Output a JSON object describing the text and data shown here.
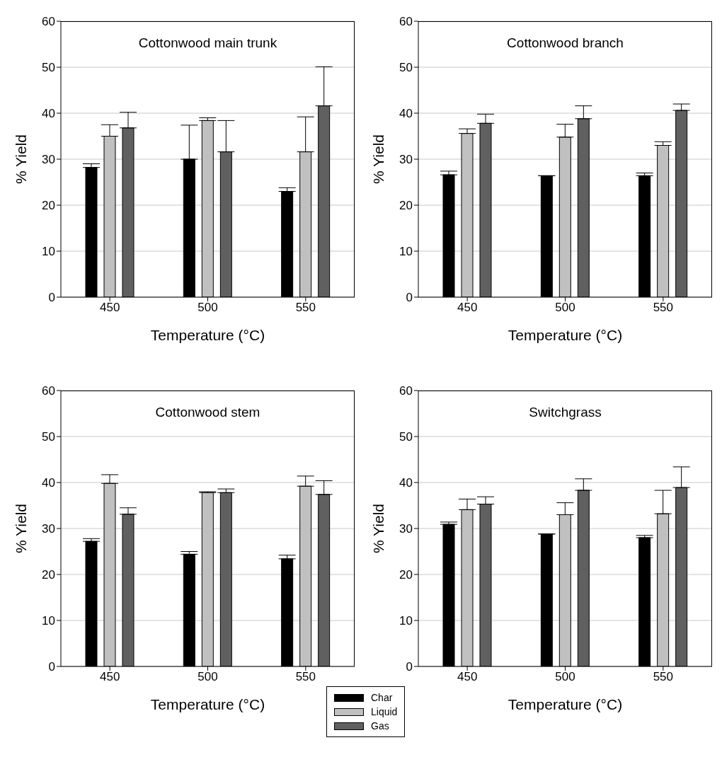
{
  "chart_data": [
    {
      "type": "bar",
      "title": "Cottonwood main trunk",
      "xlabel": "Temperature (°C)",
      "ylabel": "% Yield",
      "categories": [
        "450",
        "500",
        "550"
      ],
      "ylim": [
        0,
        60
      ],
      "yticks": [
        0,
        10,
        20,
        30,
        40,
        50,
        60
      ],
      "grid": "y",
      "series": [
        {
          "color": "#000000",
          "values": [
            28.2,
            30.0,
            23.0
          ],
          "errors": [
            [
              28.2,
              29.0
            ],
            [
              30.0,
              37.4
            ],
            [
              23.0,
              23.8
            ]
          ]
        },
        {
          "color": "#c0c0c0",
          "values": [
            35.0,
            38.4,
            31.6
          ],
          "errors": [
            [
              35.0,
              37.5
            ],
            [
              38.4,
              39.0
            ],
            [
              31.6,
              39.2
            ]
          ]
        },
        {
          "color": "#606060",
          "values": [
            36.8,
            31.6,
            41.6
          ],
          "errors": [
            [
              36.8,
              40.2
            ],
            [
              31.6,
              38.4
            ],
            [
              41.6,
              50.1
            ]
          ]
        }
      ]
    },
    {
      "type": "bar",
      "title": "Cottonwood branch",
      "xlabel": "Temperature (°C)",
      "ylabel": "% Yield",
      "categories": [
        "450",
        "500",
        "550"
      ],
      "ylim": [
        0,
        60
      ],
      "yticks": [
        0,
        10,
        20,
        30,
        40,
        50,
        60
      ],
      "grid": "y",
      "series": [
        {
          "color": "#000000",
          "values": [
            26.6,
            26.4,
            26.4
          ],
          "errors": [
            [
              26.6,
              27.4
            ],
            null,
            [
              26.4,
              27.0
            ]
          ]
        },
        {
          "color": "#c0c0c0",
          "values": [
            35.6,
            34.8,
            33.0
          ],
          "errors": [
            [
              35.6,
              36.6
            ],
            [
              34.8,
              37.6
            ],
            [
              33.0,
              33.8
            ]
          ]
        },
        {
          "color": "#606060",
          "values": [
            37.8,
            38.8,
            40.6
          ],
          "errors": [
            [
              37.8,
              39.8
            ],
            [
              38.8,
              41.6
            ],
            [
              40.6,
              42.0
            ]
          ]
        }
      ]
    },
    {
      "type": "bar",
      "title": "Cottonwood stem",
      "xlabel": "Temperature (°C)",
      "ylabel": "% Yield",
      "categories": [
        "450",
        "500",
        "550"
      ],
      "ylim": [
        0,
        60
      ],
      "yticks": [
        0,
        10,
        20,
        30,
        40,
        50,
        60
      ],
      "grid": "y",
      "series": [
        {
          "color": "#000000",
          "values": [
            27.2,
            24.4,
            23.4
          ],
          "errors": [
            [
              27.2,
              27.8
            ],
            [
              24.4,
              25.0
            ],
            [
              23.4,
              24.2
            ]
          ]
        },
        {
          "color": "#c0c0c0",
          "values": [
            39.8,
            37.8,
            39.2
          ],
          "errors": [
            [
              39.8,
              41.7
            ],
            [
              37.8,
              38.0
            ],
            [
              39.2,
              41.4
            ]
          ]
        },
        {
          "color": "#606060",
          "values": [
            33.1,
            37.8,
            37.4
          ],
          "errors": [
            [
              33.1,
              34.5
            ],
            [
              37.8,
              38.6
            ],
            [
              37.4,
              40.4
            ]
          ]
        }
      ]
    },
    {
      "type": "bar",
      "title": "Switchgrass",
      "xlabel": "Temperature (°C)",
      "ylabel": "% Yield",
      "categories": [
        "450",
        "500",
        "550"
      ],
      "ylim": [
        0,
        60
      ],
      "yticks": [
        0,
        10,
        20,
        30,
        40,
        50,
        60
      ],
      "grid": "y",
      "legend": "bottom left",
      "series": [
        {
          "name": "Char",
          "color": "#000000",
          "values": [
            30.9,
            28.8,
            28.0
          ],
          "errors": [
            [
              30.9,
              31.4
            ],
            null,
            [
              28.0,
              28.5
            ]
          ]
        },
        {
          "name": "Liquid",
          "color": "#c0c0c0",
          "values": [
            34.1,
            33.0,
            33.2
          ],
          "errors": [
            [
              34.1,
              36.4
            ],
            [
              33.0,
              35.6
            ],
            [
              33.2,
              38.3
            ]
          ]
        },
        {
          "name": "Gas",
          "color": "#606060",
          "values": [
            35.3,
            38.3,
            38.9
          ],
          "errors": [
            [
              35.3,
              36.9
            ],
            [
              38.3,
              40.8
            ],
            [
              38.9,
              43.4
            ]
          ]
        }
      ]
    }
  ]
}
